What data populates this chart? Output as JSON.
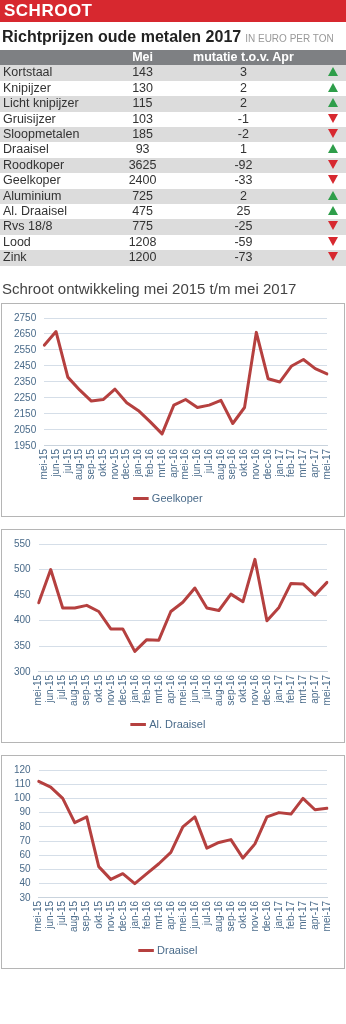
{
  "chart_data": [
    {
      "type": "other",
      "title": "Richtprijzen oude metalen 2017",
      "subtitle": "IN EURO PER TON",
      "annotations": [
        "SCHROOT"
      ],
      "data_labels": true,
      "categories": [
        "Kortstaal",
        "Knipijzer",
        "Licht knipijzer",
        "Gruisijzer",
        "Sloopmetalen",
        "Draaisel",
        "Roodkoper",
        "Geelkoper",
        "Aluminium",
        "Al. Draaisel",
        "Rvs 18/8",
        "Lood",
        "Zink"
      ],
      "series": [
        {
          "name": "Mei",
          "values": [
            143,
            130,
            115,
            103,
            185,
            93,
            3625,
            2400,
            725,
            475,
            775,
            1208,
            1200
          ]
        },
        {
          "name": "mutatie t.o.v. Apr",
          "values": [
            3,
            2,
            2,
            -1,
            -2,
            1,
            -92,
            -33,
            2,
            25,
            -25,
            -59,
            -73
          ]
        }
      ]
    },
    {
      "type": "line",
      "title": "Schroot ontwikkeling mei 2015 t/m mei 2017",
      "categories": [
        "mei-15",
        "jun-15",
        "jul-15",
        "aug-15",
        "sep-15",
        "okt-15",
        "nov-15",
        "dec-15",
        "jan-16",
        "feb-16",
        "mrt-16",
        "apr-16",
        "mei-16",
        "jun-16",
        "jul-16",
        "aug-16",
        "sep-16",
        "okt-16",
        "nov-16",
        "dec-16",
        "jan-17",
        "feb-17",
        "mrt-17",
        "apr-17",
        "mei-17"
      ],
      "series": [
        {
          "name": "Geelkoper",
          "color": "#b5403f",
          "values": [
            2580,
            2665,
            2380,
            2300,
            2230,
            2240,
            2305,
            2220,
            2170,
            2100,
            2025,
            2205,
            2240,
            2190,
            2205,
            2235,
            2090,
            2190,
            2660,
            2370,
            2350,
            2450,
            2490,
            2433,
            2400
          ]
        }
      ],
      "ylim": [
        1950,
        2750
      ],
      "yticks": [
        1950,
        2050,
        2150,
        2250,
        2350,
        2450,
        2550,
        2650,
        2750
      ],
      "grid": "y",
      "legend": "bottom",
      "marker": "none",
      "line_style": "solid"
    },
    {
      "type": "line",
      "categories": [
        "mei-15",
        "jun-15",
        "jul-15",
        "aug-15",
        "sep-15",
        "okt-15",
        "nov-15",
        "dec-15",
        "jan-16",
        "feb-16",
        "mrt-16",
        "apr-16",
        "mei-16",
        "jun-16",
        "jul-16",
        "aug-16",
        "sep-16",
        "okt-16",
        "nov-16",
        "dec-16",
        "jan-17",
        "feb-17",
        "mrt-17",
        "apr-17",
        "mei-17"
      ],
      "series": [
        {
          "name": "Al. Draaisel",
          "color": "#b5403f",
          "values": [
            435,
            500,
            425,
            425,
            430,
            418,
            384,
            384,
            340,
            363,
            362,
            418,
            436,
            464,
            425,
            420,
            452,
            437,
            520,
            400,
            426,
            473,
            472,
            450,
            475
          ]
        }
      ],
      "ylim": [
        300,
        550
      ],
      "yticks": [
        300,
        350,
        400,
        450,
        500,
        550
      ],
      "grid": "y",
      "legend": "bottom",
      "marker": "none",
      "line_style": "solid"
    },
    {
      "type": "line",
      "categories": [
        "mei-15",
        "jun-15",
        "jul-15",
        "aug-15",
        "sep-15",
        "okt-15",
        "nov-15",
        "dec-15",
        "jan-16",
        "feb-16",
        "mrt-16",
        "apr-16",
        "mei-16",
        "jun-16",
        "jul-16",
        "aug-16",
        "sep-16",
        "okt-16",
        "nov-16",
        "dec-16",
        "jan-17",
        "feb-17",
        "mrt-17",
        "apr-17",
        "mei-17"
      ],
      "series": [
        {
          "name": "Draaisel",
          "color": "#b5403f",
          "values": [
            112,
            108,
            100,
            83,
            87,
            52,
            43,
            47,
            40,
            47,
            54,
            62,
            80,
            87,
            65,
            69,
            71,
            58,
            68,
            87,
            90,
            89,
            100,
            92,
            93
          ]
        }
      ],
      "ylim": [
        30,
        120
      ],
      "yticks": [
        30,
        40,
        50,
        60,
        70,
        80,
        90,
        100,
        110,
        120
      ],
      "grid": "y",
      "legend": "bottom",
      "marker": "none",
      "line_style": "solid"
    }
  ]
}
